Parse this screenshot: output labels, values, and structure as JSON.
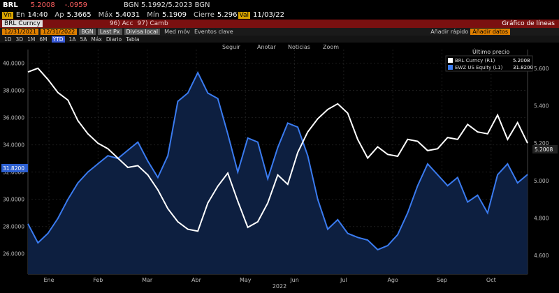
{
  "quote_bar": {
    "ticker": "BRL",
    "last": "5.2008",
    "change": "-.0959",
    "bid_ask": "BGN 5.1992/5.2023 BGN",
    "badge": "Vn",
    "time_label": "En",
    "time": "14:40",
    "open_label": "Ap",
    "open": "5.3665",
    "high_label": "Máx",
    "high": "5.4031",
    "low_label": "Mín",
    "low": "5.1909",
    "close_label": "Cierre",
    "close": "5.296",
    "vol_label": "Val",
    "date": "11/03/22"
  },
  "security_bar": {
    "security": "BRL Curncy",
    "actions": [
      "96) Acc",
      "97) Camb"
    ],
    "title": "Gráfico de líneas"
  },
  "settings_bar": {
    "start_date": "12/31/2021",
    "end_date": "12/31/2022",
    "source": "BGN",
    "field": "Last Px",
    "currency": "Divisa local",
    "options": [
      "Med móv",
      "Eventos clave"
    ],
    "quick_add_label": "Añadir rápido",
    "quick_add_field": "Añadir datos"
  },
  "period_bar": {
    "periods": [
      "1D",
      "3D",
      "1M",
      "6M",
      "YTD",
      "1A",
      "5A",
      "Máx"
    ],
    "active": "YTD",
    "frequency": "Diario",
    "table_label": "Tabla"
  },
  "chart_tools": [
    "Seguir",
    "Anotar",
    "Noticias",
    "Zoom"
  ],
  "colors": {
    "brl": "#ffffff",
    "ewz": "#3a7bf0",
    "area": "#0d1f40",
    "background": "#000000",
    "header_red": "#7a1010",
    "hl_yellow": "#d9a300",
    "orange": "#e08000"
  },
  "chart_data": {
    "type": "line",
    "title": "Gráfico de líneas",
    "xlabel": "2022",
    "x_ticks": [
      "Ene",
      "Feb",
      "Mar",
      "Abr",
      "May",
      "Jun",
      "Jul",
      "Ago",
      "Sep",
      "Oct"
    ],
    "legend_title": "Último precio",
    "legend_position": "top-right",
    "grid": true,
    "series": [
      {
        "name": "BRL Curncy (R1)",
        "last": "5.2008",
        "axis": "right",
        "color": "#ffffff",
        "ylim": [
          4.5,
          5.7
        ],
        "y_ticks": [
          "5.600",
          "5.400",
          "5.200",
          "5.000",
          "4.800",
          "4.600"
        ],
        "values": [
          5.58,
          5.6,
          5.54,
          5.47,
          5.43,
          5.32,
          5.25,
          5.2,
          5.17,
          5.12,
          5.07,
          5.08,
          5.03,
          4.95,
          4.85,
          4.78,
          4.74,
          4.73,
          4.88,
          4.97,
          5.04,
          4.89,
          4.75,
          4.78,
          4.88,
          5.03,
          4.98,
          5.15,
          5.26,
          5.33,
          5.38,
          5.41,
          5.36,
          5.22,
          5.12,
          5.18,
          5.14,
          5.13,
          5.22,
          5.21,
          5.16,
          5.17,
          5.23,
          5.22,
          5.3,
          5.26,
          5.25,
          5.35,
          5.22,
          5.31,
          5.2
        ]
      },
      {
        "name": "EWZ US Equity (L1)",
        "last": "31.8200",
        "axis": "left",
        "color": "#3a7bf0",
        "ylim": [
          24.5,
          41
        ],
        "y_ticks": [
          "40.0000",
          "38.0000",
          "36.0000",
          "34.0000",
          "32.0000",
          "30.0000",
          "28.0000",
          "26.0000"
        ],
        "values": [
          28.2,
          26.8,
          27.5,
          28.6,
          30.0,
          31.2,
          32.0,
          32.6,
          33.2,
          33.0,
          33.6,
          34.2,
          32.8,
          31.6,
          33.2,
          37.2,
          37.8,
          39.3,
          37.8,
          37.4,
          34.8,
          32.0,
          34.5,
          34.2,
          31.5,
          33.8,
          35.6,
          35.3,
          33.2,
          30.0,
          27.8,
          28.5,
          27.5,
          27.2,
          27.0,
          26.3,
          26.6,
          27.4,
          29.0,
          31.0,
          32.6,
          31.8,
          31.0,
          31.6,
          29.8,
          30.3,
          29.0,
          31.8,
          32.6,
          31.2,
          31.82
        ]
      }
    ]
  }
}
